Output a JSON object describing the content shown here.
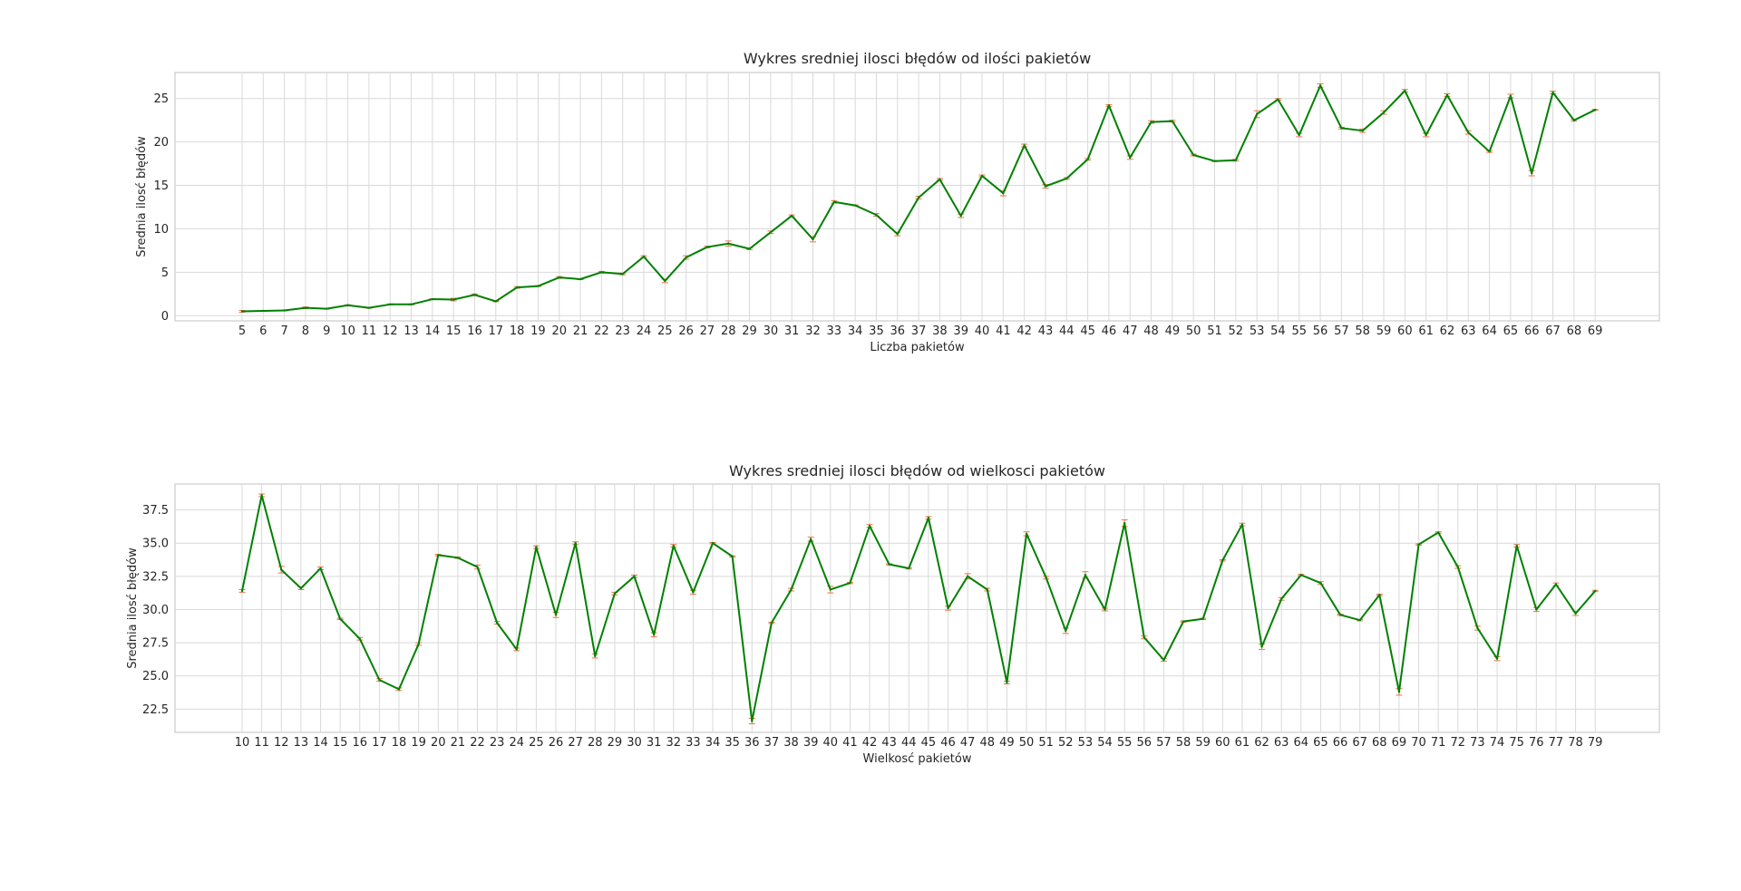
{
  "chart_data": [
    {
      "type": "line",
      "title": "Wykres sredniej ilosci błędów od ilości pakietów",
      "xlabel": "Liczba pakietów",
      "ylabel": "Srednia ilosć błędów",
      "x": [
        5,
        6,
        7,
        8,
        9,
        10,
        11,
        12,
        13,
        14,
        15,
        16,
        17,
        18,
        19,
        20,
        21,
        22,
        23,
        24,
        25,
        26,
        27,
        28,
        29,
        30,
        31,
        32,
        33,
        34,
        35,
        36,
        37,
        38,
        39,
        40,
        41,
        42,
        43,
        44,
        45,
        46,
        47,
        48,
        49,
        50,
        51,
        52,
        53,
        54,
        55,
        56,
        57,
        58,
        59,
        60,
        61,
        62,
        63,
        64,
        65,
        66,
        67,
        68,
        69
      ],
      "values": [
        0.5,
        0.55,
        0.6,
        0.9,
        0.8,
        1.2,
        0.9,
        1.3,
        1.3,
        1.9,
        1.85,
        2.4,
        1.65,
        3.25,
        3.4,
        4.4,
        4.2,
        5.0,
        4.8,
        6.8,
        4.0,
        6.7,
        7.9,
        8.3,
        7.7,
        9.6,
        11.5,
        8.8,
        13.1,
        12.7,
        11.6,
        9.4,
        13.6,
        15.7,
        11.5,
        16.1,
        14.1,
        19.6,
        14.9,
        15.8,
        18.0,
        24.2,
        18.2,
        22.3,
        22.4,
        18.5,
        17.8,
        17.9,
        23.2,
        24.9,
        20.8,
        26.5,
        21.6,
        21.3,
        23.4,
        25.9,
        20.8,
        25.4,
        21.1,
        18.9,
        25.3,
        16.4,
        25.7,
        22.5,
        23.7
      ],
      "errors": [
        0.1,
        0.05,
        0.05,
        0.1,
        0.05,
        0.05,
        0.05,
        0.05,
        0.05,
        0.05,
        0.15,
        0.1,
        0.05,
        0.1,
        0.05,
        0.1,
        0.05,
        0.1,
        0.1,
        0.1,
        0.2,
        0.2,
        0.1,
        0.3,
        0.1,
        0.15,
        0.1,
        0.3,
        0.15,
        0.05,
        0.15,
        0.2,
        0.15,
        0.1,
        0.2,
        0.1,
        0.3,
        0.15,
        0.2,
        0.1,
        0.1,
        0.1,
        0.2,
        0.15,
        0.1,
        0.1,
        0.05,
        0.1,
        0.4,
        0.1,
        0.2,
        0.2,
        0.1,
        0.2,
        0.2,
        0.15,
        0.2,
        0.15,
        0.2,
        0.1,
        0.2,
        0.3,
        0.15,
        0.1,
        0.05
      ],
      "ylim": [
        -0.6,
        28.0
      ],
      "yticks": [
        0,
        5,
        10,
        15,
        20,
        25
      ],
      "line_color": "#008000",
      "error_color": "#e8764a",
      "grid": true,
      "style": "seaborn-whitegrid"
    },
    {
      "type": "line",
      "title": "Wykres sredniej ilosci błędów od wielkosci pakietów",
      "xlabel": "Wielkosć pakietów",
      "ylabel": "Srednia ilosć błędów",
      "x": [
        10,
        11,
        12,
        13,
        14,
        15,
        16,
        17,
        18,
        19,
        20,
        21,
        22,
        23,
        24,
        25,
        26,
        27,
        28,
        29,
        30,
        31,
        32,
        33,
        34,
        35,
        36,
        37,
        38,
        39,
        40,
        41,
        42,
        43,
        44,
        45,
        46,
        47,
        48,
        49,
        50,
        51,
        52,
        53,
        54,
        55,
        56,
        57,
        58,
        59,
        60,
        61,
        62,
        63,
        64,
        65,
        66,
        67,
        68,
        69,
        70,
        71,
        72,
        73,
        74,
        75,
        76,
        77,
        78,
        79
      ],
      "values": [
        31.4,
        38.6,
        33.0,
        31.6,
        33.1,
        29.3,
        27.8,
        24.7,
        24.0,
        27.4,
        34.1,
        33.9,
        33.2,
        29.0,
        27.0,
        34.7,
        29.6,
        35.0,
        26.5,
        31.2,
        32.5,
        28.1,
        34.8,
        31.3,
        35.0,
        34.0,
        21.6,
        29.0,
        31.5,
        35.3,
        31.5,
        32.0,
        36.3,
        33.4,
        33.1,
        36.9,
        30.1,
        32.5,
        31.5,
        24.5,
        35.7,
        32.4,
        28.4,
        32.6,
        30.0,
        36.5,
        27.9,
        26.2,
        29.1,
        29.3,
        33.7,
        36.4,
        27.2,
        30.8,
        32.6,
        32.0,
        29.6,
        29.2,
        31.1,
        23.8,
        34.9,
        35.8,
        33.2,
        28.6,
        26.3,
        34.8,
        30.0,
        31.9,
        29.7,
        31.4
      ],
      "errors": [
        0.1,
        0.1,
        0.25,
        0.1,
        0.1,
        0.05,
        0.1,
        0.1,
        0.1,
        0.1,
        0.05,
        0.05,
        0.15,
        0.1,
        0.1,
        0.1,
        0.2,
        0.1,
        0.15,
        0.1,
        0.1,
        0.15,
        0.1,
        0.15,
        0.05,
        0.05,
        0.2,
        0.05,
        0.1,
        0.15,
        0.25,
        0.05,
        0.1,
        0.05,
        0.05,
        0.1,
        0.15,
        0.2,
        0.1,
        0.1,
        0.15,
        0.1,
        0.2,
        0.25,
        0.1,
        0.25,
        0.1,
        0.1,
        0.05,
        0.05,
        0.05,
        0.1,
        0.2,
        0.1,
        0.05,
        0.1,
        0.05,
        0.05,
        0.05,
        0.25,
        0.05,
        0.05,
        0.1,
        0.15,
        0.15,
        0.1,
        0.15,
        0.1,
        0.15,
        0.05
      ],
      "ylim": [
        20.75,
        39.45
      ],
      "yticks": [
        22.5,
        25.0,
        27.5,
        30.0,
        32.5,
        35.0,
        37.5
      ],
      "line_color": "#008000",
      "error_color": "#e8764a",
      "grid": true,
      "style": "seaborn-whitegrid"
    }
  ]
}
